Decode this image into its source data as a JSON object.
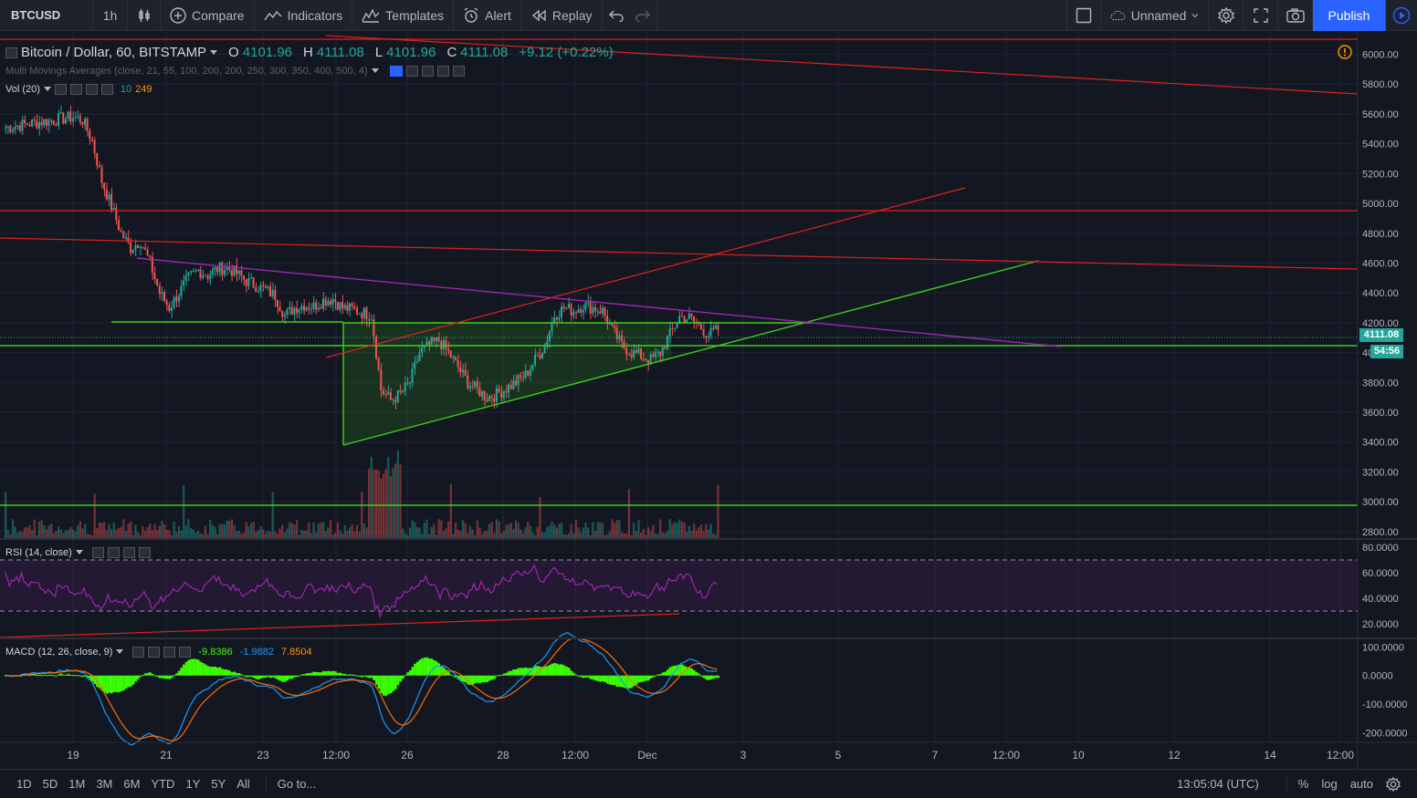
{
  "toolbar": {
    "symbol": "BTCUSD",
    "interval": "1h",
    "compare": "Compare",
    "indicators": "Indicators",
    "templates": "Templates",
    "alert": "Alert",
    "replay": "Replay",
    "layout_name": "Unnamed",
    "publish": "Publish"
  },
  "legend": {
    "title": "Bitcoin / Dollar, 60, BITSTAMP",
    "open_label": "O",
    "open": "4101.96",
    "high_label": "H",
    "high": "4111.08",
    "low_label": "L",
    "low": "4101.96",
    "close_label": "C",
    "close": "4111.08",
    "change": "+9.12 (+0.22%)",
    "mma": "Multi Movings Averages (close, 21, 55, 100, 200, 200, 250, 300, 350, 400, 500, 4)",
    "vol": "Vol (20)",
    "vol_v1": "10",
    "vol_v2": "249",
    "rsi": "RSI (14, close)",
    "macd": "MACD (12, 26, close, 9)",
    "macd_v1": "-9.8386",
    "macd_v2": "-1.9882",
    "macd_v3": "7.8504"
  },
  "price_axis": [
    "6000.00",
    "5800.00",
    "5600.00",
    "5400.00",
    "5200.00",
    "5000.00",
    "4800.00",
    "4600.00",
    "4400.00",
    "4200.00",
    "4000.00",
    "3800.00",
    "3600.00",
    "3400.00",
    "3200.00",
    "3000.00",
    "2800.00"
  ],
  "price_tag": {
    "last": "4111.08",
    "countdown": "54:56",
    "last_color": "#26a69a",
    "countdown_color": "#26a69a"
  },
  "rsi_axis": [
    "80.0000",
    "60.0000",
    "40.0000",
    "20.0000"
  ],
  "macd_axis": [
    "100.0000",
    "0.0000",
    "-100.0000",
    "-200.0000"
  ],
  "time_axis": [
    "19",
    "21",
    "23",
    "12:00",
    "26",
    "28",
    "12:00",
    "Dec",
    "3",
    "5",
    "7",
    "12:00",
    "10",
    "12",
    "14",
    "12:00"
  ],
  "bottom": {
    "ranges": [
      "1D",
      "5D",
      "1M",
      "3M",
      "6M",
      "YTD",
      "1Y",
      "5Y",
      "All"
    ],
    "goto": "Go to...",
    "clock": "13:05:04 (UTC)",
    "percent": "%",
    "log": "log",
    "auto": "auto"
  },
  "colors": {
    "bg": "#131722",
    "up": "#26a69a",
    "down": "#ef5350",
    "drawing_red": "#e0211d",
    "drawing_green": "#3cd01a",
    "drawing_purple": "#9c27b0",
    "rsi_line": "#9c27b0",
    "macd_line": "#2196f3",
    "signal_line": "#ff6d00",
    "hist": "#3cff00"
  },
  "chart_data": {
    "type": "candlestick",
    "series_ohlc_close": [
      5510,
      5520,
      5530,
      5540,
      5550,
      5560,
      5570,
      5580,
      5560,
      5420,
      5150,
      4980,
      4800,
      4700,
      4750,
      4600,
      4400,
      4300,
      4400,
      4500,
      4550,
      4520,
      4560,
      4570,
      4530,
      4480,
      4450,
      4420,
      4380,
      4250,
      4300,
      4320,
      4310,
      4350,
      4360,
      4300,
      4290,
      4270,
      4250,
      3750,
      3680,
      3720,
      3800,
      4000,
      4050,
      4080,
      4000,
      3900,
      3800,
      3750,
      3700,
      3720,
      3760,
      3800,
      3850,
      3950,
      4050,
      4250,
      4300,
      4280,
      4320,
      4300,
      4280,
      4150,
      4050,
      4000,
      3980,
      3950,
      4000,
      4120,
      4240,
      4230,
      4180,
      4120,
      4150
    ],
    "last_price": 4111.08,
    "y_range": [
      2750,
      6150
    ],
    "rsi_range": [
      10,
      85
    ],
    "macd_range": [
      -230,
      120
    ]
  }
}
